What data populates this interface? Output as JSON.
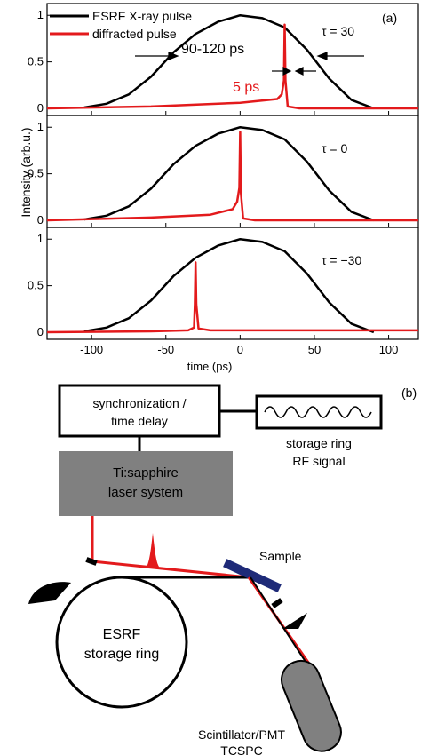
{
  "figure": {
    "panel_a_label": "(a)",
    "panel_b_label": "(b)"
  },
  "chart_data": {
    "type": "line",
    "xlabel": "time (ps)",
    "ylabel": "Intensity (arb.u.)",
    "xlim": [
      -130,
      120
    ],
    "ylim": [
      0,
      1.05
    ],
    "x_ticks": [
      -100,
      -50,
      0,
      50,
      100
    ],
    "y_ticks": [
      0,
      0.5,
      1
    ],
    "legend": {
      "placement": "top-left",
      "entries": [
        {
          "name": "ESRF X-ray pulse",
          "color": "#000000"
        },
        {
          "name": "diffracted pulse",
          "color": "#e31a1c"
        }
      ]
    },
    "annotations": {
      "xray_width": "90-120 ps",
      "diffracted_width": "5 ps"
    },
    "subplots": [
      {
        "tau_label": "τ = 30",
        "series": [
          {
            "name": "ESRF X-ray pulse",
            "x": [
              -105,
              -90,
              -75,
              -60,
              -45,
              -30,
              -15,
              0,
              15,
              30,
              45,
              60,
              75,
              90
            ],
            "y": [
              0.01,
              0.05,
              0.15,
              0.34,
              0.6,
              0.8,
              0.93,
              1.0,
              0.97,
              0.87,
              0.63,
              0.32,
              0.09,
              0.0
            ]
          },
          {
            "name": "diffracted pulse",
            "x": [
              -130,
              -60,
              0,
              25,
              28,
              29.5,
              30,
              30.5,
              32,
              40,
              120
            ],
            "y": [
              0.0,
              0.02,
              0.06,
              0.1,
              0.15,
              0.3,
              0.9,
              0.3,
              0.02,
              0.0,
              0.0
            ]
          }
        ]
      },
      {
        "tau_label": "τ = 0",
        "series": [
          {
            "name": "ESRF X-ray pulse",
            "x": [
              -105,
              -90,
              -75,
              -60,
              -45,
              -30,
              -15,
              0,
              15,
              30,
              45,
              60,
              75,
              90
            ],
            "y": [
              0.01,
              0.05,
              0.15,
              0.34,
              0.6,
              0.8,
              0.93,
              1.0,
              0.97,
              0.87,
              0.63,
              0.32,
              0.09,
              0.0
            ]
          },
          {
            "name": "diffracted pulse",
            "x": [
              -130,
              -60,
              -20,
              -5,
              -2,
              -0.5,
              0,
              0.5,
              2,
              10,
              120
            ],
            "y": [
              0.0,
              0.03,
              0.06,
              0.12,
              0.2,
              0.35,
              0.95,
              0.3,
              0.02,
              0.0,
              0.0
            ]
          }
        ]
      },
      {
        "tau_label": "τ = −30",
        "series": [
          {
            "name": "ESRF X-ray pulse",
            "x": [
              -105,
              -90,
              -75,
              -60,
              -45,
              -30,
              -15,
              0,
              15,
              30,
              45,
              60,
              75,
              90
            ],
            "y": [
              0.01,
              0.05,
              0.15,
              0.34,
              0.6,
              0.8,
              0.93,
              1.0,
              0.97,
              0.87,
              0.63,
              0.32,
              0.09,
              0.0
            ]
          },
          {
            "name": "diffracted pulse",
            "x": [
              -130,
              -60,
              -35,
              -31,
              -30.5,
              -30,
              -29.5,
              -28,
              -20,
              120
            ],
            "y": [
              0.0,
              0.01,
              0.02,
              0.05,
              0.3,
              0.75,
              0.3,
              0.04,
              0.02,
              0.02
            ]
          }
        ]
      }
    ]
  },
  "diagram": {
    "sync_box_lines": [
      "synchronization /",
      "time delay"
    ],
    "rf_caption_lines": [
      "storage ring",
      "RF signal"
    ],
    "laser_lines": [
      "Ti:sapphire",
      "laser system"
    ],
    "sample_label": "Sample",
    "ring_lines": [
      "ESRF",
      "storage ring"
    ],
    "detector_lines": [
      "Scintillator/PMT",
      "TCSPC"
    ]
  }
}
